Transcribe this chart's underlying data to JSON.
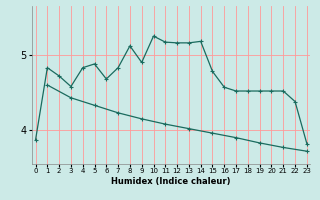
{
  "xlabel": "Humidex (Indice chaleur)",
  "bg_color": "#cceae7",
  "grid_color": "#ff9999",
  "line_color": "#1a6b5e",
  "x_ticks": [
    0,
    1,
    2,
    3,
    4,
    5,
    6,
    7,
    8,
    9,
    10,
    11,
    12,
    13,
    14,
    15,
    16,
    17,
    18,
    19,
    20,
    21,
    22,
    23
  ],
  "y_ticks": [
    4,
    5
  ],
  "ylim": [
    3.55,
    5.65
  ],
  "xlim": [
    -0.3,
    23.3
  ],
  "line1_x": [
    0,
    1,
    2,
    3,
    4,
    5,
    6,
    7,
    8,
    9,
    10,
    11,
    12,
    13,
    14,
    15,
    16,
    17,
    18,
    19,
    20,
    21,
    22,
    23
  ],
  "line1_y": [
    3.87,
    4.83,
    4.72,
    4.58,
    4.83,
    4.88,
    4.68,
    4.83,
    5.12,
    4.9,
    5.25,
    5.17,
    5.16,
    5.16,
    5.18,
    4.78,
    4.57,
    4.52,
    4.52,
    4.52,
    4.52,
    4.52,
    4.38,
    3.82
  ],
  "line2_x": [
    1,
    3,
    5,
    7,
    9,
    11,
    13,
    15,
    17,
    19,
    21,
    23
  ],
  "line2_y": [
    4.6,
    4.43,
    4.33,
    4.23,
    4.15,
    4.08,
    4.02,
    3.96,
    3.9,
    3.83,
    3.77,
    3.72
  ]
}
